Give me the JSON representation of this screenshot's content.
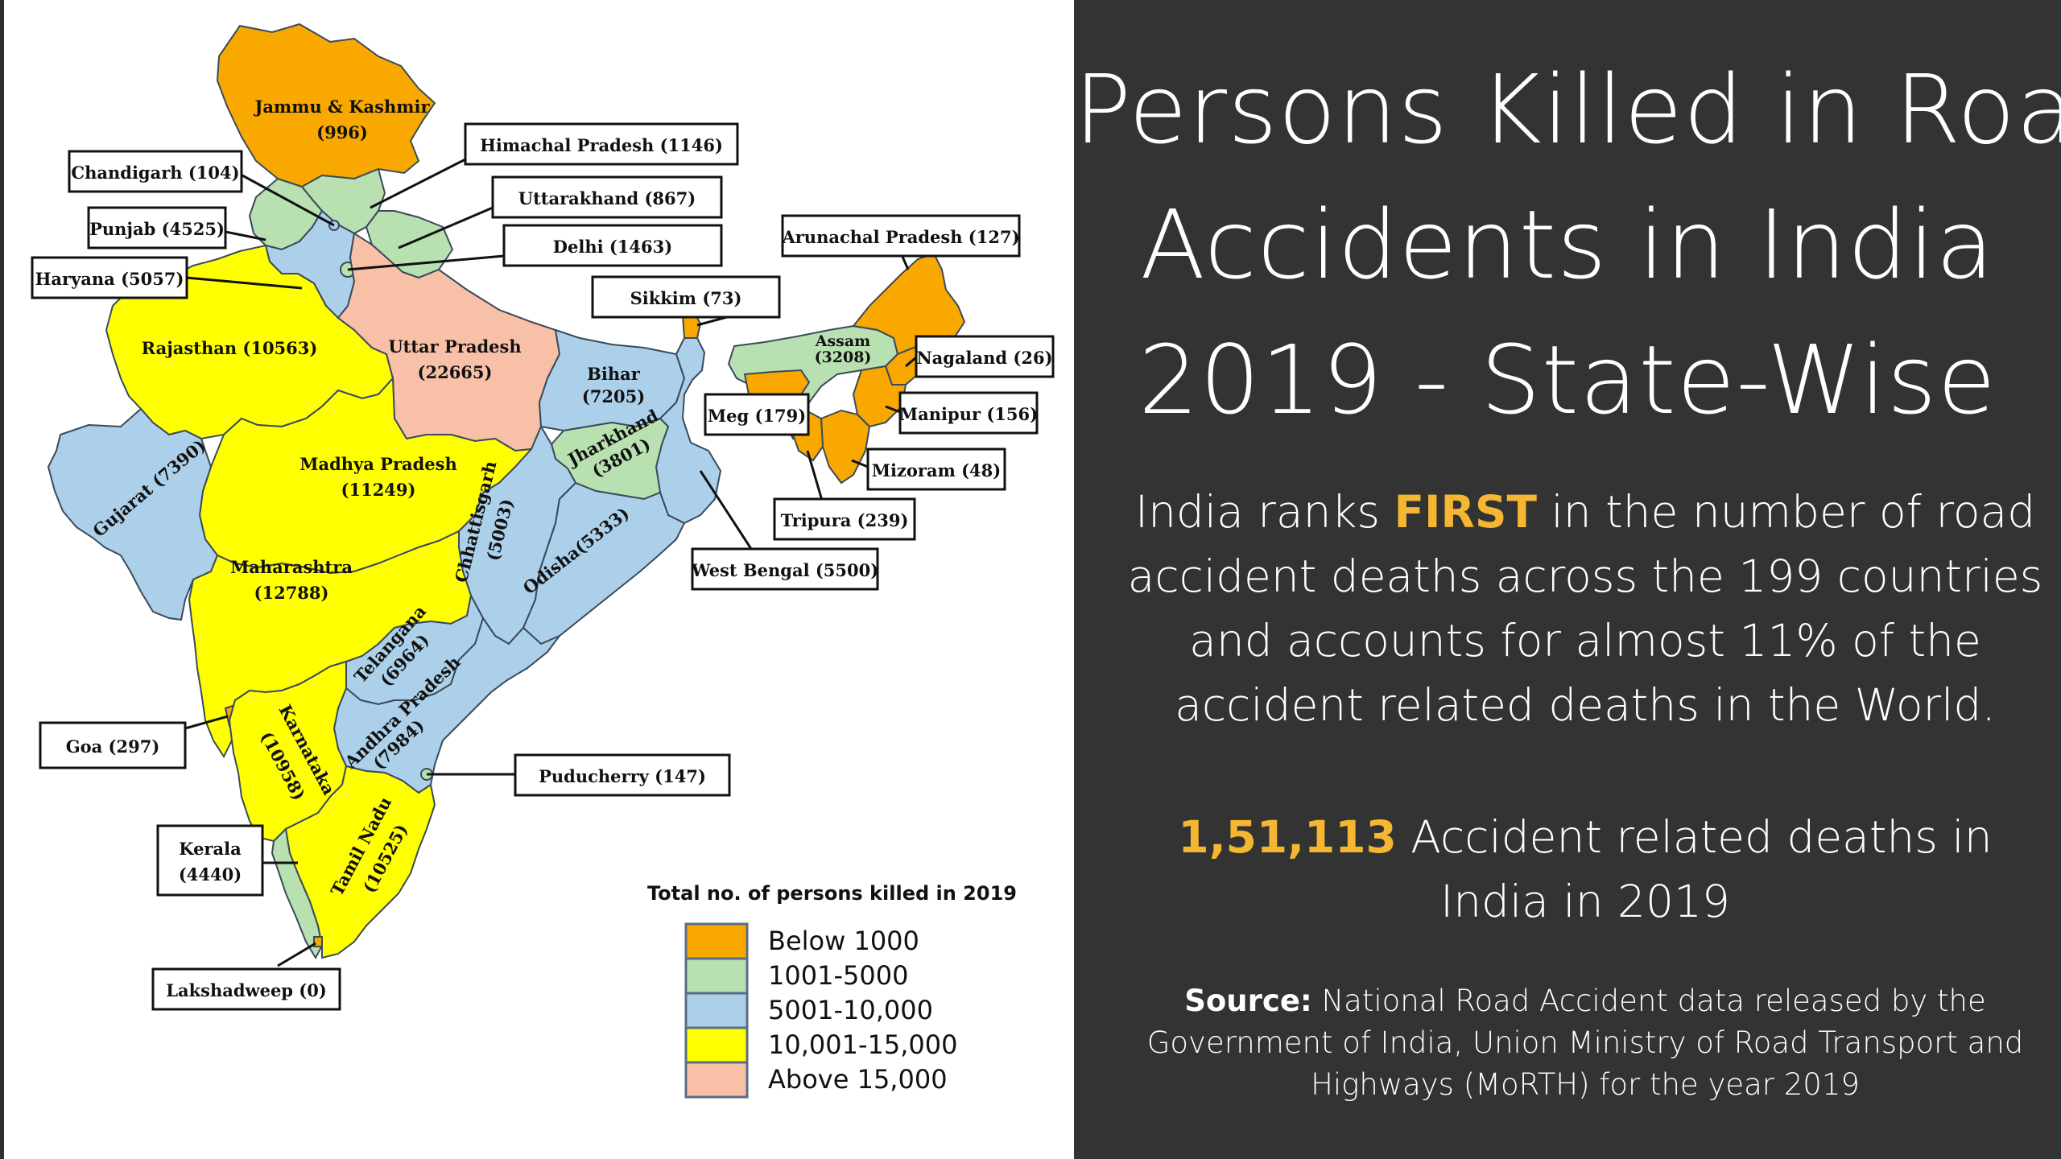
{
  "colors": {
    "below_1000": "#f9a800",
    "range_1001_5000": "#b8e0b0",
    "range_5001_10000": "#add0ea",
    "range_10001_15000": "#ffff00",
    "above_15000": "#f9c0a8",
    "panel_bg": "#333333",
    "highlight": "#f5b731"
  },
  "title": {
    "line1": "Persons Killed in Road",
    "line2": "Accidents in India",
    "line3": "2019 - State-Wise"
  },
  "rank": {
    "before": "India ranks ",
    "highlight": "FIRST",
    "after": " in the number of road accident deaths across the 199 countries and accounts for almost 11% of the accident related deaths in the World."
  },
  "deaths": {
    "number": "1,51,113",
    "text": " Accident related deaths in India in 2019"
  },
  "source": {
    "label": "Source:",
    "text": " National Road Accident data released by the Government of India, Union Ministry of Road Transport and Highways (MoRTH) for the year 2019"
  },
  "legend": {
    "title": "Total no. of persons killed in 2019",
    "items": [
      {
        "label": "Below 1000",
        "color": "#f9a800"
      },
      {
        "label": "1001-5000",
        "color": "#b8e0b0"
      },
      {
        "label": "5001-10,000",
        "color": "#add0ea"
      },
      {
        "label": "10,001-15,000",
        "color": "#ffff00"
      },
      {
        "label": "Above 15,000",
        "color": "#f9c0a8"
      }
    ]
  },
  "map": {
    "inline_labels": {
      "jammu_kashmir": [
        "Jammu & Kashmir",
        "(996)"
      ],
      "rajasthan": "Rajasthan (10563)",
      "uttar_pradesh": [
        "Uttar Pradesh",
        "(22665)"
      ],
      "bihar": [
        "Bihar",
        "(7205)"
      ],
      "jharkhand": [
        "Jharkhand",
        "(3801)"
      ],
      "madhya_pradesh": [
        "Madhya Pradesh",
        "(11249)"
      ],
      "gujarat": "Gujarat (7390)",
      "maharashtra": [
        "Maharashtra",
        "(12788)"
      ],
      "chhattisgarh": [
        "Chhattisgarh",
        "(5003)"
      ],
      "odisha": "Odisha(5333)",
      "telangana": [
        "Telangana",
        "(6964)"
      ],
      "andhra_pradesh": [
        "Andhra Pradesh",
        "(7984)"
      ],
      "karnataka": [
        "Karnataka",
        "(10958)"
      ],
      "tamil_nadu": [
        "Tamil Nadu",
        "(10525)"
      ],
      "assam": [
        "Assam",
        "(3208)"
      ]
    },
    "callouts": {
      "himachal_pradesh": "Himachal Pradesh (1146)",
      "chandigarh": "Chandigarh (104)",
      "uttarakhand": "Uttarakhand (867)",
      "punjab": "Punjab (4525)",
      "delhi": "Delhi (1463)",
      "haryana": "Haryana (5057)",
      "arunachal_pradesh": "Arunachal Pradesh (127)",
      "sikkim": "Sikkim (73)",
      "nagaland": "Nagaland (26)",
      "meghalaya": "Meg (179)",
      "manipur": "Manipur (156)",
      "mizoram": "Mizoram (48)",
      "tripura": "Tripura (239)",
      "west_bengal": "West Bengal (5500)",
      "goa": "Goa (297)",
      "puducherry": "Puducherry (147)",
      "kerala": [
        "Kerala",
        "(4440)"
      ],
      "lakshadweep": "Lakshadweep (0)"
    }
  }
}
